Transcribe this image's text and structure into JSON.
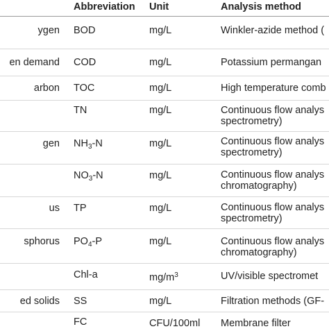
{
  "header": {
    "col0": "",
    "col1": "Abbreviation",
    "col2": "Unit",
    "col3": "Analysis method"
  },
  "rows": [
    {
      "name": "ygen",
      "abbr": "BOD",
      "unit": "mg/L",
      "method_1": "Winkler-azide method (",
      "method_2": ""
    },
    {
      "name": "en demand",
      "abbr": "COD",
      "unit": "mg/L",
      "method_1": "Potassium permangan",
      "method_2": ""
    },
    {
      "name": "arbon",
      "abbr": "TOC",
      "unit": "mg/L",
      "method_1": "High temperature comb",
      "method_2": ""
    },
    {
      "name": "",
      "abbr": "TN",
      "unit": "mg/L",
      "method_1": "Continuous flow analys",
      "method_2": "spectrometry)"
    },
    {
      "name": "gen",
      "abbr_main": "NH",
      "abbr_sub": "3",
      "abbr_tail": "-N",
      "unit": "mg/L",
      "method_1": "Continuous flow analys",
      "method_2": "spectrometry)"
    },
    {
      "name": " ",
      "abbr_main": "NO",
      "abbr_sub": "3",
      "abbr_tail": "-N",
      "unit": "mg/L",
      "method_1": "Continuous flow analys",
      "method_2": "chromatography)"
    },
    {
      "name": "us",
      "abbr": "TP",
      "unit": "mg/L",
      "method_1": "Continuous flow analys",
      "method_2": "spectrometry)"
    },
    {
      "name": "sphorus",
      "abbr_main": "PO",
      "abbr_sub": "4",
      "abbr_tail": "-P",
      "unit": "mg/L",
      "method_1": "Continuous flow analys",
      "method_2": "chromatography)"
    },
    {
      "name": "",
      "abbr": "Chl-a",
      "unit_main": "mg/m",
      "unit_sup": "3",
      "method_1": "UV/visible spectromet",
      "method_2": ""
    },
    {
      "name": "ed solids",
      "abbr": "SS",
      "unit": "mg/L",
      "method_1": "Filtration methods (GF-",
      "method_2": ""
    },
    {
      "name": "",
      "abbr": "FC",
      "unit": "CFU/100ml",
      "method_1": "Membrane filter",
      "method_2": ""
    }
  ]
}
